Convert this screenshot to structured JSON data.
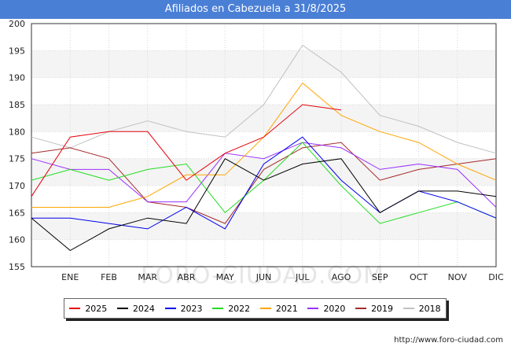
{
  "header": {
    "title": "Afiliados en Cabezuela a 31/8/2025"
  },
  "footer": {
    "url": "http://www.foro-ciudad.com"
  },
  "watermark": {
    "text": "FORO-CIUDAD.COM"
  },
  "chart_data": {
    "type": "line",
    "title": "Afiliados en Cabezuela a 31/8/2025",
    "xlabel": "",
    "ylabel": "",
    "categories": [
      "",
      "ENE",
      "FEB",
      "MAR",
      "ABR",
      "MAY",
      "JUN",
      "JUL",
      "AGO",
      "SEP",
      "OCT",
      "NOV",
      "DIC"
    ],
    "ylim": [
      155,
      200
    ],
    "yticks": [
      155,
      160,
      165,
      170,
      175,
      180,
      185,
      190,
      195,
      200
    ],
    "grid": true,
    "legend_position": "bottom",
    "series": [
      {
        "name": "2025",
        "color": "#e8000b",
        "values": [
          168,
          179,
          180,
          180,
          171,
          176,
          179,
          185,
          184,
          null,
          null,
          null,
          null
        ]
      },
      {
        "name": "2024",
        "color": "#000000",
        "values": [
          164,
          158,
          162,
          164,
          163,
          175,
          171,
          174,
          175,
          165,
          169,
          169,
          168
        ]
      },
      {
        "name": "2023",
        "color": "#0000ee",
        "values": [
          164,
          164,
          163,
          162,
          166,
          162,
          174,
          179,
          171,
          165,
          169,
          167,
          164
        ]
      },
      {
        "name": "2022",
        "color": "#22dd22",
        "values": [
          171,
          173,
          171,
          173,
          174,
          165,
          171,
          178,
          170,
          163,
          165,
          167,
          164
        ]
      },
      {
        "name": "2021",
        "color": "#ffa500",
        "values": [
          166,
          166,
          166,
          168,
          172,
          172,
          179,
          189,
          183,
          180,
          178,
          174,
          171
        ]
      },
      {
        "name": "2020",
        "color": "#9b30ff",
        "values": [
          175,
          173,
          173,
          167,
          167,
          176,
          175,
          178,
          177,
          173,
          174,
          173,
          166
        ]
      },
      {
        "name": "2019",
        "color": "#a52a2a",
        "values": [
          176,
          177,
          175,
          167,
          166,
          163,
          173,
          177,
          178,
          171,
          173,
          174,
          175
        ]
      },
      {
        "name": "2018",
        "color": "#c0c0c0",
        "values": [
          179,
          177,
          180,
          182,
          180,
          179,
          185,
          196,
          191,
          183,
          181,
          178,
          176
        ]
      }
    ]
  }
}
